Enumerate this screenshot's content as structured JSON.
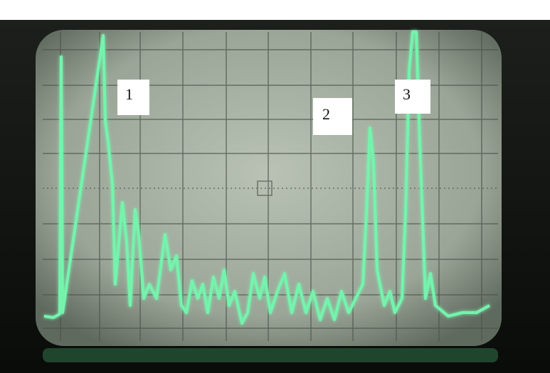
{
  "labels": [
    "1",
    "2",
    "3"
  ]
}
